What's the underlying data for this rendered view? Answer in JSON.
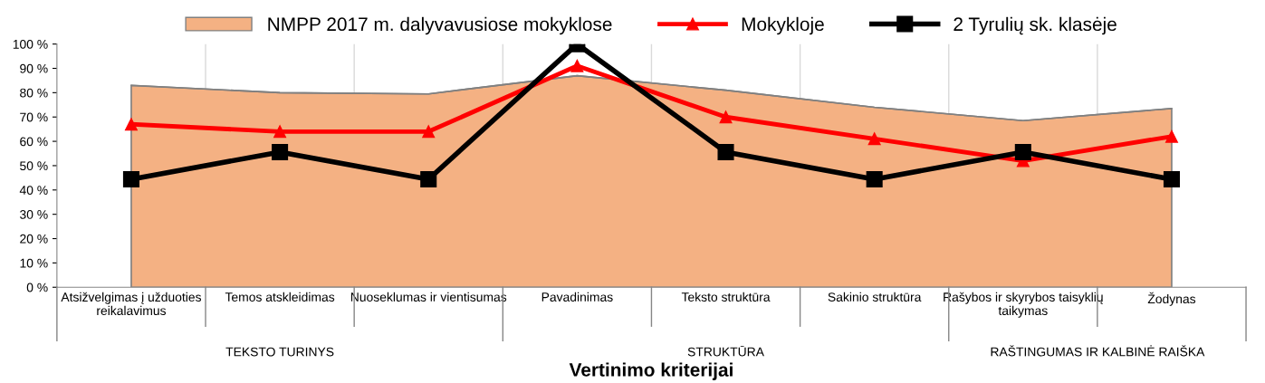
{
  "chart_data": {
    "type": "line",
    "xlabel": "Vertinimo kriterijai",
    "categories": [
      "Atsižvelgimas į užduoties reikalavimus",
      "Temos atskleidimas",
      "Nuoseklumas ir vientisumas",
      "Pavadinimas",
      "Teksto struktūra",
      "Sakinio struktūra",
      "Rašybos ir skyrybos taisyklių taikymas",
      "Žodynas"
    ],
    "series": [
      {
        "name": "NMPP 2017 m. dalyvavusiose mokyklose",
        "type": "area",
        "color": "#f4b183",
        "values": [
          83,
          80,
          79.5,
          87,
          81,
          74,
          68.5,
          73.5
        ]
      },
      {
        "name": "Mokykloje",
        "type": "line",
        "color": "#ff0000",
        "marker": "triangle",
        "values": [
          67,
          64,
          64,
          91,
          70,
          61,
          52,
          62
        ]
      },
      {
        "name": "2 Tyrulių sk. klasėje",
        "type": "line",
        "color": "#000000",
        "marker": "square",
        "values": [
          44.4,
          55.6,
          44.4,
          100,
          55.6,
          44.4,
          55.6,
          44.4
        ]
      }
    ],
    "ylim": [
      0,
      100
    ],
    "yticks": [
      {
        "value": 0,
        "label": "0 %"
      },
      {
        "value": 10,
        "label": "10 %"
      },
      {
        "value": 20,
        "label": "20 %"
      },
      {
        "value": 30,
        "label": "30 %"
      },
      {
        "value": 40,
        "label": "40 %"
      },
      {
        "value": 50,
        "label": "50 %"
      },
      {
        "value": 60,
        "label": "60 %"
      },
      {
        "value": 70,
        "label": "70 %"
      },
      {
        "value": 80,
        "label": "80 %"
      },
      {
        "value": 90,
        "label": "90 %"
      },
      {
        "value": 100,
        "label": "100 %"
      }
    ],
    "grid": "x",
    "legend": "top",
    "annotations": [
      "TEKSTO TURINYS",
      "STRUKTŪRA",
      "RAŠTINGUMAS IR KALBINĖ RAIŠKA"
    ]
  }
}
